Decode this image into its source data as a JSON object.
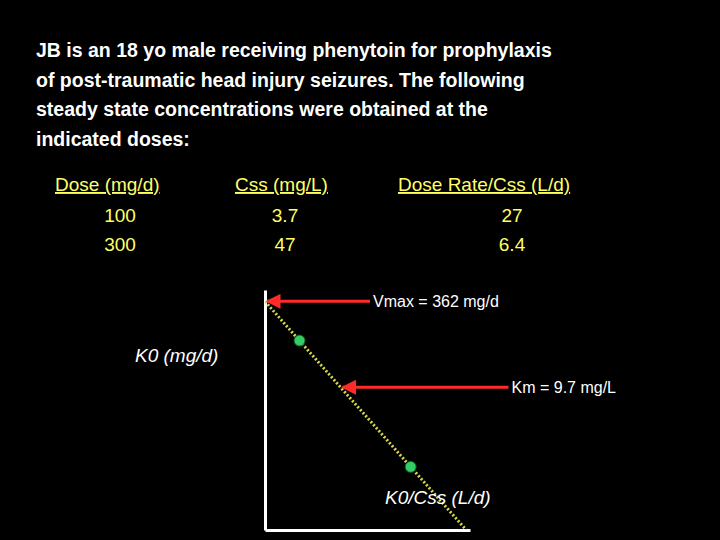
{
  "chart_data": {
    "type": "scatter",
    "title": [
      "JB is an 18 yo male receiving phenytoin for prophylaxis",
      "of post-traumatic head injury seizures. The following",
      "steady state concentrations were obtained at the",
      "indicated doses:"
    ],
    "table": {
      "columns": [
        "Dose (mg/d)",
        "Css (mg/L)",
        "Dose Rate/Css (L/d)"
      ],
      "rows": [
        [
          100,
          3.7,
          27
        ],
        [
          300,
          47,
          6.4
        ]
      ]
    },
    "x_label": "K0/Css (L/d)",
    "y_label": "K0 (mg/d)",
    "x": [
      6.4,
      27
    ],
    "values": [
      300,
      100
    ],
    "color": "#33cc66",
    "fit_line": {
      "x": [
        0,
        37.3
      ],
      "values": [
        362,
        0
      ]
    },
    "annotations": [
      {
        "text": "Vmax = 362 mg/d",
        "x": 0,
        "y": 362
      },
      {
        "text": "Km = 9.7 mg/L",
        "x": 14,
        "y": 226
      }
    ],
    "xlim": [
      0,
      38
    ],
    "ylim": [
      0,
      380
    ],
    "xticks": [],
    "yticks": [],
    "tick_labels": false
  }
}
